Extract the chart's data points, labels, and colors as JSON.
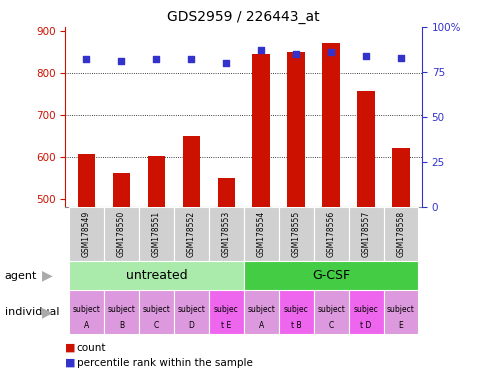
{
  "title": "GDS2959 / 226443_at",
  "samples": [
    "GSM178549",
    "GSM178550",
    "GSM178551",
    "GSM178552",
    "GSM178553",
    "GSM178554",
    "GSM178555",
    "GSM178556",
    "GSM178557",
    "GSM178558"
  ],
  "counts": [
    607,
    562,
    603,
    651,
    549,
    845,
    851,
    872,
    757,
    621
  ],
  "percentile_ranks": [
    82,
    81,
    82,
    82,
    80,
    87,
    85,
    86,
    84,
    83
  ],
  "ylim_left": [
    480,
    910
  ],
  "ylim_right": [
    0,
    100
  ],
  "yticks_left": [
    500,
    600,
    700,
    800,
    900
  ],
  "yticks_right": [
    0,
    25,
    50,
    75,
    100
  ],
  "yticklabels_right": [
    "0",
    "25",
    "50",
    "75",
    "100%"
  ],
  "bar_color": "#cc1100",
  "dot_color": "#3333cc",
  "agent_groups": [
    {
      "label": "untreated",
      "start": 0,
      "end": 5,
      "color": "#aaeaaa"
    },
    {
      "label": "G-CSF",
      "start": 5,
      "end": 10,
      "color": "#44cc44"
    }
  ],
  "individuals": [
    {
      "label": "subject\nA",
      "idx": 0,
      "highlight": false
    },
    {
      "label": "subject\nB",
      "idx": 1,
      "highlight": false
    },
    {
      "label": "subject\nC",
      "idx": 2,
      "highlight": false
    },
    {
      "label": "subject\nD",
      "idx": 3,
      "highlight": false
    },
    {
      "label": "subjec\nt E",
      "idx": 4,
      "highlight": true
    },
    {
      "label": "subject\nA",
      "idx": 5,
      "highlight": false
    },
    {
      "label": "subjec\nt B",
      "idx": 6,
      "highlight": true
    },
    {
      "label": "subject\nC",
      "idx": 7,
      "highlight": false
    },
    {
      "label": "subjec\nt D",
      "idx": 8,
      "highlight": true
    },
    {
      "label": "subject\nE",
      "idx": 9,
      "highlight": false
    }
  ],
  "individual_highlight_color": "#ee66ee",
  "individual_normal_color": "#dd99dd",
  "ylabel_left_color": "#cc1100",
  "ylabel_right_color": "#3333cc",
  "legend_count_color": "#cc1100",
  "legend_dot_color": "#3333cc",
  "sample_bg": "#d0d0d0",
  "grid_color": "#000000",
  "grid_style": ":"
}
